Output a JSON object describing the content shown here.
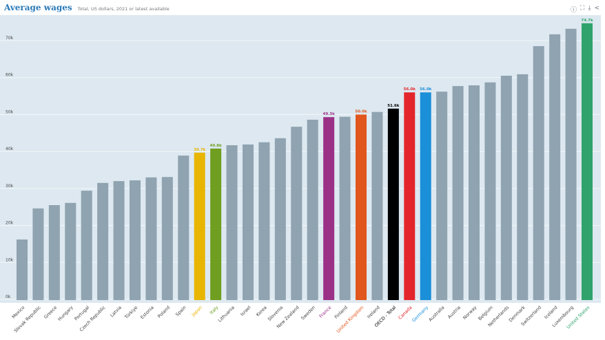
{
  "header": {
    "title": "Average wages",
    "subtitle": "Total, US dollars, 2021 or latest available"
  },
  "tools": [
    {
      "icon": "info-icon",
      "glyph": "ⓘ"
    },
    {
      "icon": "fullscreen-icon",
      "glyph": "⛶"
    },
    {
      "icon": "download-icon",
      "glyph": "⤓"
    },
    {
      "icon": "share-icon",
      "glyph": "<"
    }
  ],
  "chart_data": {
    "type": "bar",
    "title": "Average wages",
    "subtitle": "Total, US dollars, 2021 or latest available",
    "xlabel": "",
    "ylabel": "",
    "ylim": [
      0,
      75000
    ],
    "yticks": [
      0,
      10000,
      20000,
      30000,
      40000,
      50000,
      60000,
      70000
    ],
    "ytick_labels": [
      "0k",
      "10k",
      "20k",
      "30k",
      "40k",
      "50k",
      "60k",
      "70k"
    ],
    "grid": true,
    "default_color": "#8fa3b0",
    "background": "#dde8f0",
    "categories": [
      "Mexico",
      "Slovak Republic",
      "Greece",
      "Hungary",
      "Portugal",
      "Czech Republic",
      "Latvia",
      "Türkiye",
      "Estonia",
      "Poland",
      "Spain",
      "Japan",
      "Italy",
      "Lithuania",
      "Israel",
      "Korea",
      "Slovenia",
      "New Zealand",
      "Sweden",
      "France",
      "Finland",
      "United Kingdom",
      "Ireland",
      "OECD - Total",
      "Canada",
      "Germany",
      "Australia",
      "Austria",
      "Norway",
      "Belgium",
      "Netherlands",
      "Denmark",
      "Switzerland",
      "Iceland",
      "Luxembourg",
      "United States"
    ],
    "values": [
      16200,
      24600,
      25500,
      26100,
      29400,
      31500,
      32000,
      32200,
      33000,
      33100,
      38900,
      39700,
      40800,
      41700,
      41900,
      42500,
      43600,
      46700,
      48600,
      49300,
      49400,
      50000,
      50700,
      51600,
      56000,
      56000,
      56200,
      57700,
      57900,
      58700,
      60500,
      60900,
      68500,
      71700,
      73200,
      74700
    ],
    "highlights": {
      "Japan": {
        "color": "#e8b500",
        "label": "39.7k"
      },
      "Italy": {
        "color": "#6f9e21",
        "label": "40.8k"
      },
      "France": {
        "color": "#9b3187",
        "label": "49.3k"
      },
      "United Kingdom": {
        "color": "#e0561c",
        "label": "50.0k"
      },
      "OECD - Total": {
        "color": "#000000",
        "label": "51.6k"
      },
      "Canada": {
        "color": "#e3262b",
        "label": "56.0k"
      },
      "Germany": {
        "color": "#1b8fd8",
        "label": "56.0k"
      },
      "United States": {
        "color": "#2fa36b",
        "label": "74.7k"
      }
    }
  }
}
